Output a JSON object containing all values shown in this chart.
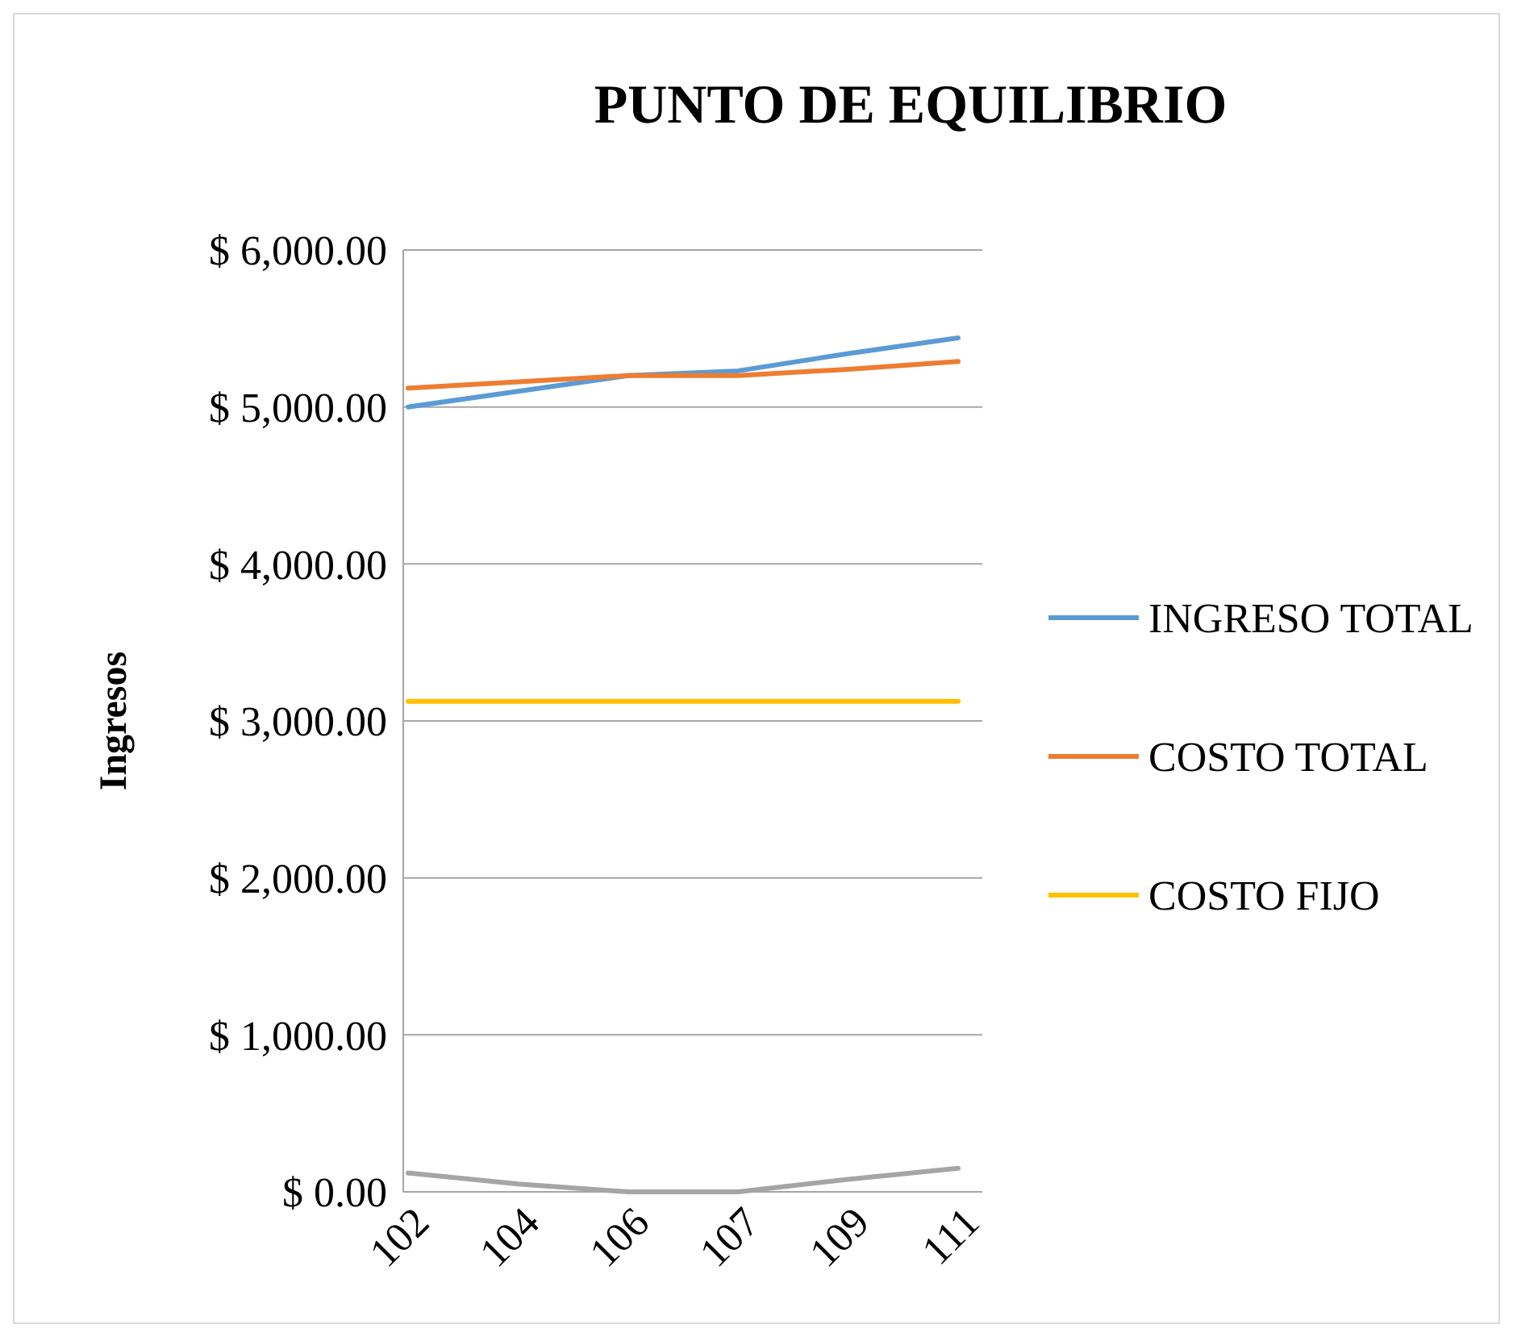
{
  "chart_data": {
    "type": "line",
    "title": "PUNTO DE EQUILIBRIO",
    "ylabel": "Ingresos",
    "categories": [
      "102",
      "104",
      "106",
      "107",
      "109",
      "111"
    ],
    "series": [
      {
        "name": "INGRESO TOTAL",
        "color": "#5b9bd5",
        "values": [
          5000,
          5100,
          5200,
          5230,
          5340,
          5440
        ]
      },
      {
        "name": "COSTO TOTAL",
        "color": "#ed7d31",
        "values": [
          5120,
          5160,
          5200,
          5200,
          5240,
          5290
        ]
      },
      {
        "name": "COSTO FIJO",
        "color": "#ffc000",
        "values": [
          3125,
          3125,
          3125,
          3125,
          3125,
          3125
        ]
      },
      {
        "color": "#a5a5a5",
        "values": [
          120,
          50,
          0,
          0,
          80,
          150
        ]
      }
    ],
    "ylim": [
      0,
      6000
    ],
    "yticks": [
      {
        "value": 0,
        "label": "$ 0.00"
      },
      {
        "value": 1000,
        "label": "$ 1,000.00"
      },
      {
        "value": 2000,
        "label": "$ 2,000.00"
      },
      {
        "value": 3000,
        "label": "$ 3,000.00"
      },
      {
        "value": 4000,
        "label": "$ 4,000.00"
      },
      {
        "value": 5000,
        "label": "$ 5,000.00"
      },
      {
        "value": 6000,
        "label": "$ 6,000.00"
      }
    ],
    "grid": "y",
    "legend": "right",
    "marker": "none",
    "line_style": "solid"
  }
}
